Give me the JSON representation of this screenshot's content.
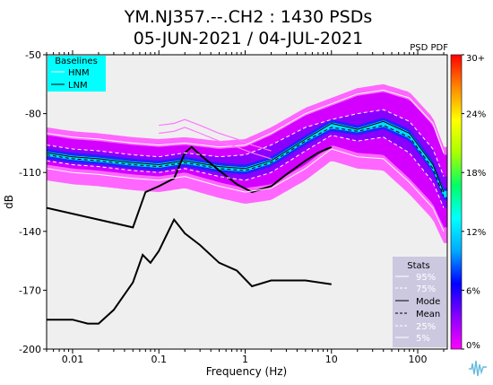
{
  "chart_data": {
    "type": "heatmap",
    "title_line1": "YM.NJ357.--.CH2 : 1430 PSDs",
    "title_line2": "05-JUN-2021 / 04-JUL-2021",
    "xlabel": "Frequency (Hz)",
    "ylabel": "dB",
    "xscale": "log",
    "xlim": [
      0.005,
      220
    ],
    "ylim": [
      -200,
      -50
    ],
    "x_ticks": [
      {
        "value": 0.01,
        "label": "0.01"
      },
      {
        "value": 0.1,
        "label": "0.1"
      },
      {
        "value": 1,
        "label": "1"
      },
      {
        "value": 10,
        "label": "10"
      },
      {
        "value": 100,
        "label": "100"
      }
    ],
    "y_ticks": [
      {
        "value": -50,
        "label": "-50"
      },
      {
        "value": -80,
        "label": "-80"
      },
      {
        "value": -110,
        "label": "-110"
      },
      {
        "value": -140,
        "label": "-140"
      },
      {
        "value": -170,
        "label": "-170"
      },
      {
        "value": -200,
        "label": "-200"
      }
    ],
    "background": "#efefef",
    "colorbar": {
      "title": "PSD PDF",
      "ticks": [
        {
          "value": 30,
          "label": "30+"
        },
        {
          "value": 24,
          "label": "24%"
        },
        {
          "value": 18,
          "label": "18%"
        },
        {
          "value": 12,
          "label": "12%"
        },
        {
          "value": 6,
          "label": "6%"
        },
        {
          "value": 0,
          "label": "0%"
        }
      ],
      "range": [
        0,
        30
      ],
      "colors": [
        "#ff00ff",
        "#8800ff",
        "#0000ff",
        "#00aaff",
        "#00ffff",
        "#00ff66",
        "#aaff00",
        "#ffff00",
        "#ff8800",
        "#ff0000"
      ]
    },
    "baselines_legend": {
      "title": "Baselines",
      "entries": [
        "HNM",
        "LNM"
      ],
      "background": "#00ffff"
    },
    "stats_legend": {
      "title": "Stats",
      "entries": [
        "95%",
        "75%",
        "Mode",
        "Mean",
        "25%",
        "5%"
      ],
      "background": "#ccc8e0"
    },
    "series": [
      {
        "name": "HNM",
        "points": [
          [
            0.1,
            -86
          ],
          [
            0.15,
            -85
          ],
          [
            0.2,
            -83
          ],
          [
            0.3,
            -86
          ],
          [
            0.5,
            -90
          ],
          [
            0.8,
            -93
          ],
          [
            1.2,
            -96
          ],
          [
            2,
            -99
          ]
        ]
      },
      {
        "name": "LNM",
        "points": [
          [
            0.005,
            -128
          ],
          [
            0.05,
            -138
          ],
          [
            0.07,
            -120
          ],
          [
            0.1,
            -117
          ],
          [
            0.15,
            -113
          ],
          [
            0.2,
            -100
          ],
          [
            0.24,
            -97
          ],
          [
            0.3,
            -101
          ],
          [
            0.5,
            -109
          ],
          [
            0.8,
            -116
          ],
          [
            1.2,
            -120
          ],
          [
            2,
            -117
          ],
          [
            3,
            -111
          ],
          [
            5,
            -104
          ],
          [
            7,
            -100
          ],
          [
            10,
            -97
          ]
        ]
      },
      {
        "name": "HNM-low",
        "points": [
          [
            0.005,
            -185
          ],
          [
            0.01,
            -185
          ],
          [
            0.015,
            -187
          ],
          [
            0.02,
            -187
          ],
          [
            0.03,
            -180
          ],
          [
            0.05,
            -166
          ],
          [
            0.065,
            -152
          ],
          [
            0.08,
            -156
          ],
          [
            0.1,
            -150
          ],
          [
            0.15,
            -134
          ],
          [
            0.2,
            -141
          ],
          [
            0.3,
            -147
          ],
          [
            0.5,
            -156
          ],
          [
            0.8,
            -160
          ],
          [
            1.2,
            -168
          ],
          [
            2,
            -165
          ],
          [
            5,
            -165
          ],
          [
            10,
            -167
          ]
        ]
      },
      {
        "name": "95%",
        "points": [
          [
            0.005,
            -90
          ],
          [
            0.01,
            -92
          ],
          [
            0.02,
            -93
          ],
          [
            0.05,
            -95
          ],
          [
            0.1,
            -96
          ],
          [
            0.2,
            -95
          ],
          [
            0.5,
            -97
          ],
          [
            1,
            -96
          ],
          [
            2,
            -90
          ],
          [
            5,
            -80
          ],
          [
            10,
            -75
          ],
          [
            20,
            -70
          ],
          [
            40,
            -68
          ],
          [
            80,
            -72
          ],
          [
            150,
            -85
          ],
          [
            200,
            -100
          ]
        ]
      },
      {
        "name": "75%",
        "points": [
          [
            0.005,
            -96
          ],
          [
            0.01,
            -98
          ],
          [
            0.02,
            -99
          ],
          [
            0.05,
            -101
          ],
          [
            0.1,
            -102
          ],
          [
            0.2,
            -100
          ],
          [
            0.5,
            -102
          ],
          [
            1,
            -101
          ],
          [
            2,
            -96
          ],
          [
            5,
            -87
          ],
          [
            10,
            -83
          ],
          [
            20,
            -80
          ],
          [
            40,
            -78
          ],
          [
            80,
            -84
          ],
          [
            150,
            -98
          ],
          [
            200,
            -112
          ]
        ]
      },
      {
        "name": "Mode",
        "points": [
          [
            0.005,
            -100
          ],
          [
            0.01,
            -102
          ],
          [
            0.02,
            -103
          ],
          [
            0.05,
            -105
          ],
          [
            0.1,
            -106
          ],
          [
            0.2,
            -104
          ],
          [
            0.5,
            -107
          ],
          [
            1,
            -108
          ],
          [
            2,
            -104
          ],
          [
            5,
            -93
          ],
          [
            10,
            -85
          ],
          [
            20,
            -88
          ],
          [
            40,
            -84
          ],
          [
            80,
            -90
          ],
          [
            150,
            -106
          ],
          [
            200,
            -120
          ]
        ]
      },
      {
        "name": "Mean",
        "points": [
          [
            0.005,
            -101
          ],
          [
            0.01,
            -103
          ],
          [
            0.02,
            -104
          ],
          [
            0.05,
            -106
          ],
          [
            0.1,
            -107
          ],
          [
            0.2,
            -105
          ],
          [
            0.5,
            -108
          ],
          [
            1,
            -109
          ],
          [
            2,
            -105
          ],
          [
            5,
            -94
          ],
          [
            10,
            -87
          ],
          [
            20,
            -89
          ],
          [
            40,
            -86
          ],
          [
            80,
            -92
          ],
          [
            150,
            -108
          ],
          [
            200,
            -122
          ]
        ]
      },
      {
        "name": "25%",
        "points": [
          [
            0.005,
            -104
          ],
          [
            0.01,
            -106
          ],
          [
            0.02,
            -107
          ],
          [
            0.05,
            -109
          ],
          [
            0.1,
            -110
          ],
          [
            0.2,
            -108
          ],
          [
            0.5,
            -112
          ],
          [
            1,
            -114
          ],
          [
            2,
            -110
          ],
          [
            5,
            -99
          ],
          [
            10,
            -91
          ],
          [
            20,
            -94
          ],
          [
            40,
            -92
          ],
          [
            80,
            -100
          ],
          [
            150,
            -115
          ],
          [
            200,
            -128
          ]
        ]
      },
      {
        "name": "5%",
        "points": [
          [
            0.005,
            -108
          ],
          [
            0.01,
            -110
          ],
          [
            0.02,
            -111
          ],
          [
            0.05,
            -113
          ],
          [
            0.1,
            -114
          ],
          [
            0.2,
            -112
          ],
          [
            0.5,
            -117
          ],
          [
            1,
            -120
          ],
          [
            2,
            -118
          ],
          [
            5,
            -108
          ],
          [
            10,
            -98
          ],
          [
            20,
            -102
          ],
          [
            40,
            -103
          ],
          [
            80,
            -115
          ],
          [
            150,
            -128
          ],
          [
            200,
            -140
          ]
        ]
      }
    ]
  }
}
